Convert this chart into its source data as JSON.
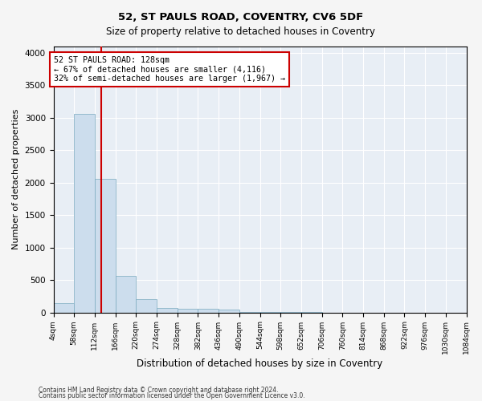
{
  "title": "52, ST PAULS ROAD, COVENTRY, CV6 5DF",
  "subtitle": "Size of property relative to detached houses in Coventry",
  "xlabel": "Distribution of detached houses by size in Coventry",
  "ylabel": "Number of detached properties",
  "bins": [
    4,
    58,
    112,
    166,
    220,
    274,
    328,
    382,
    436,
    490,
    544,
    598,
    652,
    706,
    760,
    814,
    868,
    922,
    976,
    1030,
    1084
  ],
  "bin_labels": [
    "4sqm",
    "58sqm",
    "112sqm",
    "166sqm",
    "220sqm",
    "274sqm",
    "328sqm",
    "382sqm",
    "436sqm",
    "490sqm",
    "544sqm",
    "598sqm",
    "652sqm",
    "706sqm",
    "760sqm",
    "814sqm",
    "868sqm",
    "922sqm",
    "976sqm",
    "1030sqm",
    "1084sqm"
  ],
  "counts": [
    140,
    3060,
    2060,
    560,
    200,
    75,
    55,
    55,
    40,
    10,
    5,
    3,
    2,
    1,
    1,
    0,
    0,
    0,
    0,
    0
  ],
  "bar_color": "#ccdded",
  "bar_edge_color": "#7aaabf",
  "property_size": 128,
  "red_line_color": "#cc0000",
  "annotation_text": "52 ST PAULS ROAD: 128sqm\n← 67% of detached houses are smaller (4,116)\n32% of semi-detached houses are larger (1,967) →",
  "annotation_box_color": "#ffffff",
  "annotation_box_edge": "#cc0000",
  "ylim": [
    0,
    4100
  ],
  "yticks": [
    0,
    500,
    1000,
    1500,
    2000,
    2500,
    3000,
    3500,
    4000
  ],
  "background_color": "#e8eef5",
  "grid_color": "#ffffff",
  "fig_background": "#f5f5f5",
  "footer1": "Contains HM Land Registry data © Crown copyright and database right 2024.",
  "footer2": "Contains public sector information licensed under the Open Government Licence v3.0."
}
